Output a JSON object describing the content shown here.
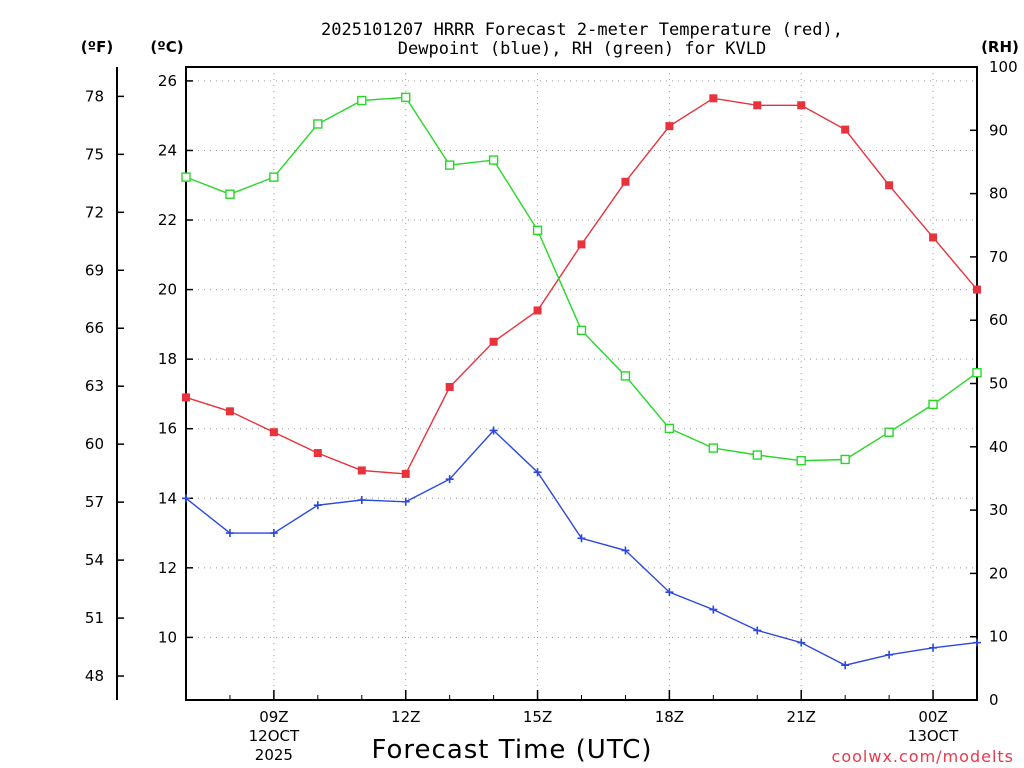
{
  "chart_data": {
    "type": "line",
    "title_line1": "2025101207 HRRR Forecast 2-meter Temperature (red),",
    "title_line2": "Dewpoint (blue), RH (green) for KVLD",
    "xlabel": "Forecast Time (UTC)",
    "credit": "coolwx.com/modelts",
    "credit_color": "#e8384d",
    "axes": {
      "left_f_unit": "(ºF)",
      "left_c_unit": "(ºC)",
      "right_rh_unit": "(RH)",
      "c_range": [
        8.2,
        26.4
      ],
      "rh_range": [
        0,
        100
      ],
      "c_ticks": [
        "10",
        "12",
        "14",
        "16",
        "18",
        "20",
        "22",
        "24",
        "26"
      ],
      "f_ticks": [
        "48",
        "51",
        "54",
        "57",
        "60",
        "63",
        "66",
        "69",
        "72",
        "75",
        "78"
      ],
      "rh_ticks": [
        "0",
        "10",
        "20",
        "30",
        "40",
        "50",
        "60",
        "70",
        "80",
        "90",
        "100"
      ]
    },
    "x_hours": [
      7,
      8,
      9,
      10,
      11,
      12,
      13,
      14,
      15,
      16,
      17,
      18,
      19,
      20,
      21,
      22,
      23,
      24,
      25
    ],
    "x_range": [
      7,
      25
    ],
    "x_ticks": [
      {
        "hour": 9,
        "label": "09Z",
        "sub1": "12OCT",
        "sub2": "2025"
      },
      {
        "hour": 12,
        "label": "12Z",
        "sub1": "",
        "sub2": ""
      },
      {
        "hour": 15,
        "label": "15Z",
        "sub1": "",
        "sub2": ""
      },
      {
        "hour": 18,
        "label": "18Z",
        "sub1": "",
        "sub2": ""
      },
      {
        "hour": 21,
        "label": "21Z",
        "sub1": "",
        "sub2": ""
      },
      {
        "hour": 24,
        "label": "00Z",
        "sub1": "13OCT",
        "sub2": ""
      }
    ],
    "series": [
      {
        "name": "Temperature",
        "units": "C",
        "color": "#e8323c",
        "marker": "filled-square",
        "values": [
          16.9,
          16.5,
          15.9,
          15.3,
          14.8,
          14.7,
          17.2,
          18.5,
          19.4,
          21.3,
          23.1,
          24.7,
          25.5,
          25.3,
          25.3,
          24.6,
          23.0,
          21.5,
          20.0
        ]
      },
      {
        "name": "Dewpoint",
        "units": "C",
        "color": "#2b48e0",
        "marker": "plus",
        "values": [
          14.0,
          13.0,
          13.0,
          13.8,
          13.95,
          13.9,
          14.55,
          15.95,
          14.75,
          12.85,
          12.5,
          11.3,
          10.8,
          10.2,
          9.85,
          9.2,
          9.5,
          9.7,
          9.85
        ]
      },
      {
        "name": "RH",
        "units": "%",
        "color": "#28d828",
        "marker": "open-square",
        "values": [
          82.6,
          79.9,
          82.6,
          91.0,
          94.7,
          95.2,
          84.5,
          85.3,
          74.2,
          58.4,
          51.2,
          42.9,
          39.8,
          38.7,
          37.8,
          38.0,
          42.3,
          46.7,
          51.7
        ]
      }
    ]
  }
}
